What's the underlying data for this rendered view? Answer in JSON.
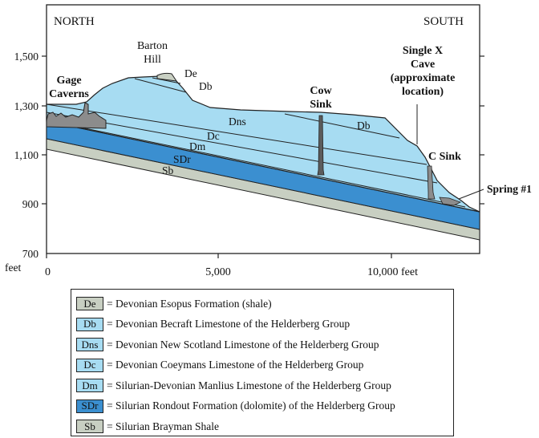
{
  "frame": {
    "north": "NORTH",
    "south": "SOUTH"
  },
  "y_axis": {
    "unit": "feet",
    "ticks": [
      "1,500",
      "1,300",
      "1,100",
      "900",
      "700"
    ]
  },
  "x_axis": {
    "ticks": [
      "0",
      "5,000",
      "10,000 feet"
    ]
  },
  "labels": {
    "barton_line1": "Barton",
    "barton_line2": "Hill",
    "gage_line1": "Gage",
    "gage_line2": "Caverns",
    "cow_line1": "Cow",
    "cow_line2": "Sink",
    "singlex_line1": "Single X",
    "singlex_line2": "Cave",
    "singlex_line3": "(approximate",
    "singlex_line4": "location)",
    "csink": "C Sink",
    "spring": "Spring #1"
  },
  "layer_labels": {
    "de": "De",
    "db_left": "Db",
    "db_right": "Db",
    "dns": "Dns",
    "dc": "Dc",
    "dm": "Dm",
    "sdr": "SDr",
    "sb": "Sb"
  },
  "colors": {
    "shale_gray": "#c8cfc2",
    "light_blue": "#a7dcf2",
    "dark_blue": "#3b8fd0",
    "cave_gray": "#8c8c8c",
    "line": "#222222"
  },
  "legend": [
    {
      "code": "De",
      "text": "= Devonian Esopus Formation (shale)",
      "color": "#c8cfc2"
    },
    {
      "code": "Db",
      "text": "= Devonian Becraft Limestone of the Helderberg Group",
      "color": "#a7dcf2"
    },
    {
      "code": "Dns",
      "text": "= Devonian New Scotland Limestone of the Helderberg Group",
      "color": "#a7dcf2"
    },
    {
      "code": "Dc",
      "text": "= Devonian Coeymans Limestone of the Helderberg Group",
      "color": "#a7dcf2"
    },
    {
      "code": "Dm",
      "text": "= Silurian-Devonian Manlius Limestone of the Helderberg Group",
      "color": "#a7dcf2"
    },
    {
      "code": "SDr",
      "text": "= Silurian Rondout Formation (dolomite) of the Helderberg Group",
      "color": "#3b8fd0"
    },
    {
      "code": "Sb",
      "text": "= Silurian Brayman Shale",
      "color": "#c8cfc2"
    }
  ]
}
